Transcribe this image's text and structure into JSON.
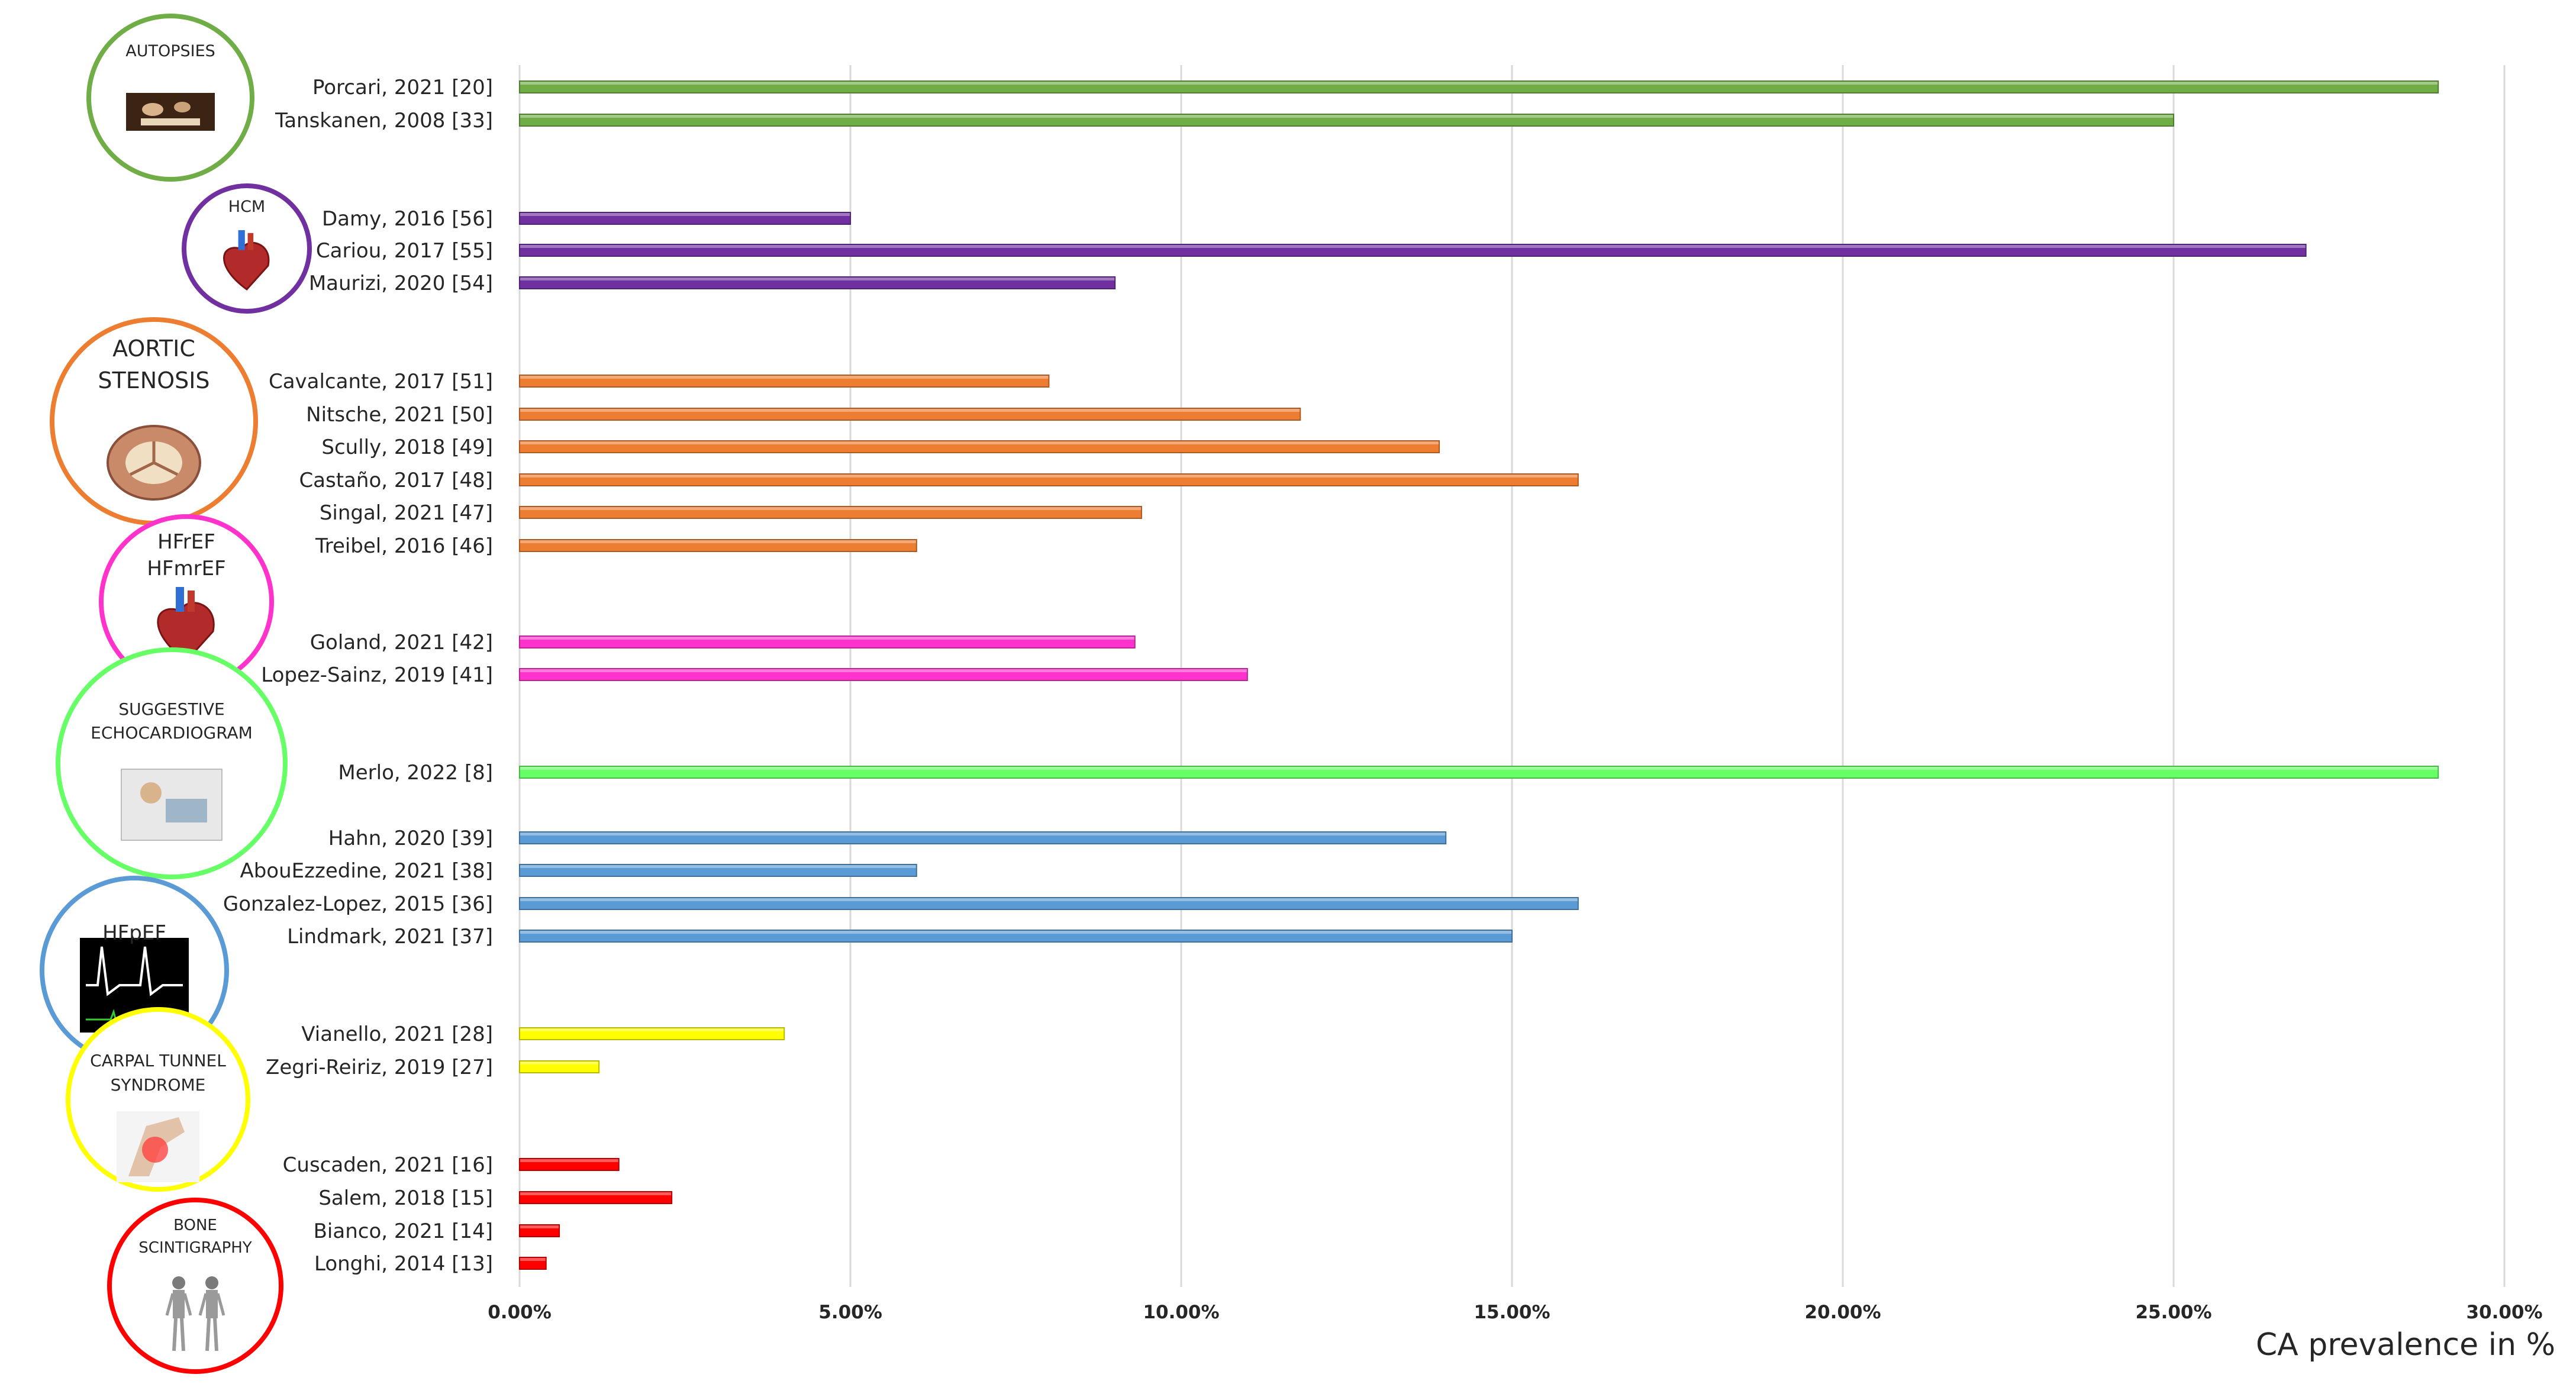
{
  "chart_data": {
    "type": "bar",
    "orientation": "horizontal",
    "xlabel": "CA prevalence in %",
    "xlim": [
      0,
      30
    ],
    "x_ticks": [
      "0.00%",
      "5.00%",
      "10.00%",
      "15.00%",
      "20.00%",
      "25.00%",
      "30.00%"
    ],
    "grid": true,
    "groups": [
      {
        "name": "AUTOPSIES",
        "color": "#70ad47",
        "icon": "autopsy-painting-icon",
        "bars": [
          {
            "label": "Porcari, 2021 [20]",
            "value": 29
          },
          {
            "label": "Tanskanen, 2008 [33]",
            "value": 25
          }
        ]
      },
      {
        "name": "HCM",
        "color": "#7030a0",
        "icon": "heart-anatomy-icon",
        "bars": [
          {
            "label": "Damy, 2016 [56]",
            "value": 5
          },
          {
            "label": "Cariou, 2017 [55]",
            "value": 27
          },
          {
            "label": "Maurizi, 2020 [54]",
            "value": 9
          }
        ]
      },
      {
        "name": "AORTIC STENOSIS",
        "color": "#ed7d31",
        "icon": "aortic-valve-icon",
        "bars": [
          {
            "label": "Cavalcante, 2017 [51]",
            "value": 8
          },
          {
            "label": "Nitsche, 2021 [50]",
            "value": 11.8
          },
          {
            "label": "Scully, 2018 [49]",
            "value": 13.9
          },
          {
            "label": "Castaño, 2017 [48]",
            "value": 16
          },
          {
            "label": "Singal, 2021 [47]",
            "value": 9.4
          },
          {
            "label": "Treibel, 2016 [46]",
            "value": 6
          }
        ]
      },
      {
        "name": "HFrEF HFmrEF",
        "color": "#ff33cc",
        "icon": "heart-illustration-icon",
        "bars": [
          {
            "label": "Goland, 2021 [42]",
            "value": 9.3
          },
          {
            "label": "Lopez-Sainz, 2019 [41]",
            "value": 11
          }
        ]
      },
      {
        "name": "SUGGESTIVE ECHOCARDIOGRAM",
        "color": "#66ff66",
        "icon": "echocardiogram-icon",
        "bars": [
          {
            "label": "Merlo, 2022 [8]",
            "value": 29
          }
        ]
      },
      {
        "name": "HFpEF",
        "color": "#5b9bd5",
        "icon": "doppler-waveform-icon",
        "bars": [
          {
            "label": "Hahn, 2020 [39]",
            "value": 14
          },
          {
            "label": "AbouEzzedine, 2021 [38]",
            "value": 6
          },
          {
            "label": "Gonzalez-Lopez, 2015 [36]",
            "value": 16
          },
          {
            "label": "Lindmark, 2021 [37]",
            "value": 15
          }
        ]
      },
      {
        "name": "CARPAL TUNNEL SYNDROME",
        "color": "#ffff00",
        "icon": "wrist-pain-icon",
        "bars": [
          {
            "label": "Vianello, 2021 [28]",
            "value": 4
          },
          {
            "label": "Zegri-Reiriz, 2019 [27]",
            "value": 1.2
          }
        ]
      },
      {
        "name": "BONE SCINTIGRAPHY",
        "color": "#ff0000",
        "icon": "bone-scan-icon",
        "bars": [
          {
            "label": "Cuscaden, 2021 [16]",
            "value": 1.5
          },
          {
            "label": "Salem, 2018 [15]",
            "value": 2.3
          },
          {
            "label": "Bianco, 2021 [14]",
            "value": 0.6
          },
          {
            "label": "Longhi, 2014 [13]",
            "value": 0.4
          }
        ]
      }
    ]
  }
}
